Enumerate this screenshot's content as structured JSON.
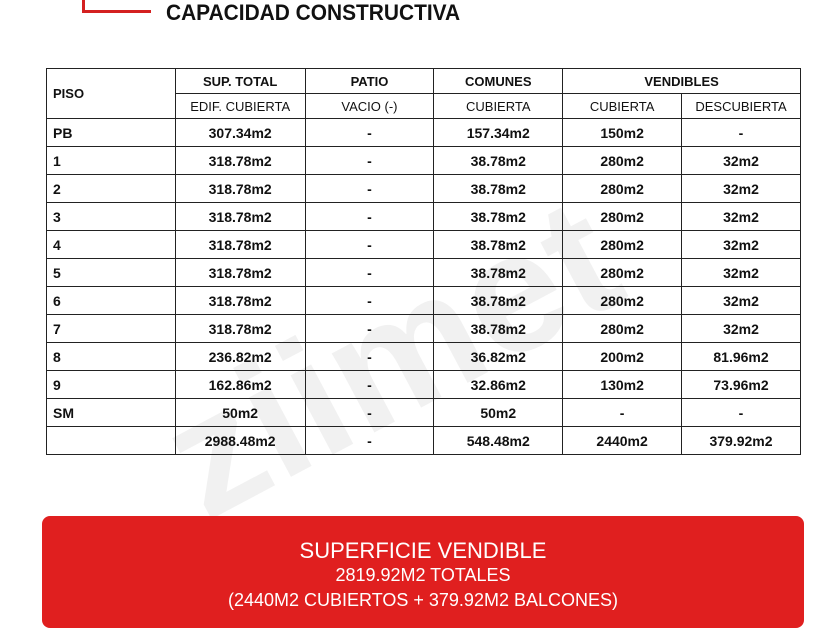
{
  "title": "CAPACIDAD CONSTRUCTIVA",
  "watermark": "ziimet",
  "table": {
    "header1": [
      "PISO",
      "SUP. TOTAL",
      "PATIO",
      "COMUNES",
      "VENDIBLES"
    ],
    "header2": [
      "EDIF. CUBIERTA",
      "VACIO (-)",
      "CUBIERTA",
      "CUBIERTA",
      "DESCUBIERTA"
    ],
    "rows": [
      [
        "PB",
        "307.34m2",
        "-",
        "157.34m2",
        "150m2",
        "-"
      ],
      [
        "1",
        "318.78m2",
        "-",
        "38.78m2",
        "280m2",
        "32m2"
      ],
      [
        "2",
        "318.78m2",
        "-",
        "38.78m2",
        "280m2",
        "32m2"
      ],
      [
        "3",
        "318.78m2",
        "-",
        "38.78m2",
        "280m2",
        "32m2"
      ],
      [
        "4",
        "318.78m2",
        "-",
        "38.78m2",
        "280m2",
        "32m2"
      ],
      [
        "5",
        "318.78m2",
        "-",
        "38.78m2",
        "280m2",
        "32m2"
      ],
      [
        "6",
        "318.78m2",
        "-",
        "38.78m2",
        "280m2",
        "32m2"
      ],
      [
        "7",
        "318.78m2",
        "-",
        "38.78m2",
        "280m2",
        "32m2"
      ],
      [
        "8",
        "236.82m2",
        "-",
        "36.82m2",
        "200m2",
        "81.96m2"
      ],
      [
        "9",
        "162.86m2",
        "-",
        "32.86m2",
        "130m2",
        "73.96m2"
      ],
      [
        "SM",
        "50m2",
        "-",
        "50m2",
        "-",
        "-"
      ],
      [
        "",
        "2988.48m2",
        "-",
        "548.48m2",
        "2440m2",
        "379.92m2"
      ]
    ]
  },
  "summary": {
    "title": "SUPERFICIE VENDIBLE",
    "total": "2819.92M2 TOTALES",
    "detail": "(2440M2 CUBIERTOS + 379.92M2 BALCONES)"
  },
  "colors": {
    "accent": "#e01f1f"
  }
}
